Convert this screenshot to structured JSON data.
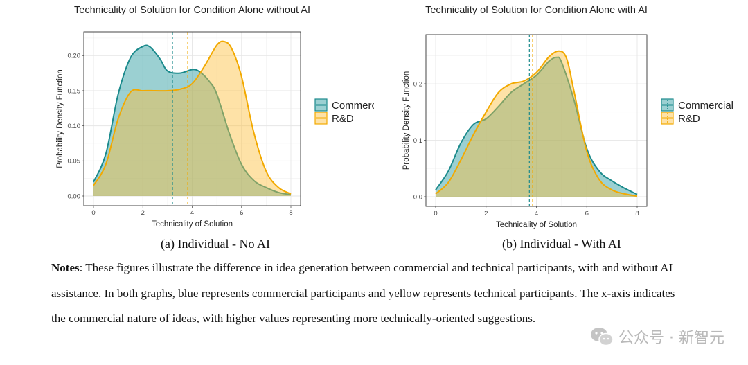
{
  "chart_data": [
    {
      "type": "area",
      "title": "Technicality of Solution for Condition Alone without AI",
      "xlabel": "Technicality of Solution",
      "ylabel": "Probability Density Function",
      "xlim": [
        0,
        8
      ],
      "ylim": [
        0,
        0.22
      ],
      "xticks": [
        0,
        2,
        4,
        6,
        8
      ],
      "yticks": [
        0.0,
        0.05,
        0.1,
        0.15,
        0.2
      ],
      "ytick_labels": [
        "0.00",
        "0.05",
        "0.10",
        "0.15",
        "0.20"
      ],
      "grid": true,
      "legend_placement": "right",
      "series": [
        {
          "name": "Commercial",
          "color": "#1b8a8c",
          "fill": "rgba(56,161,165,0.5)",
          "mean": 3.2,
          "x": [
            0,
            0.5,
            1,
            1.5,
            2,
            2.3,
            2.7,
            3,
            3.5,
            4,
            4.3,
            4.7,
            5,
            5.5,
            6,
            6.5,
            7,
            7.5,
            8
          ],
          "y": [
            0.02,
            0.06,
            0.145,
            0.197,
            0.213,
            0.212,
            0.195,
            0.178,
            0.175,
            0.18,
            0.177,
            0.163,
            0.145,
            0.09,
            0.045,
            0.022,
            0.012,
            0.005,
            0.002
          ]
        },
        {
          "name": "R&D",
          "color": "#f2a900",
          "fill": "rgba(252,190,60,0.45)",
          "mean": 3.82,
          "x": [
            0,
            0.5,
            1,
            1.5,
            2,
            2.5,
            3,
            3.5,
            4,
            4.5,
            5,
            5.3,
            5.6,
            6,
            6.5,
            7,
            7.5,
            8
          ],
          "y": [
            0.015,
            0.045,
            0.11,
            0.148,
            0.15,
            0.15,
            0.15,
            0.152,
            0.16,
            0.185,
            0.215,
            0.22,
            0.21,
            0.17,
            0.09,
            0.035,
            0.012,
            0.003
          ]
        }
      ]
    },
    {
      "type": "area",
      "title": "Technicality of Solution for Condition Alone with AI",
      "xlabel": "Technicality of Solution",
      "ylabel": "Probability Density Function",
      "xlim": [
        0,
        8
      ],
      "ylim": [
        0,
        0.27
      ],
      "xticks": [
        0,
        2,
        4,
        6,
        8
      ],
      "yticks": [
        0.0,
        0.1,
        0.2
      ],
      "ytick_labels": [
        "0.0",
        "0.1",
        "0.2"
      ],
      "grid": true,
      "legend_placement": "right",
      "series": [
        {
          "name": "Commercial",
          "color": "#1b8a8c",
          "fill": "rgba(56,161,165,0.5)",
          "mean": 3.72,
          "x": [
            0,
            0.5,
            1,
            1.5,
            2,
            2.5,
            3,
            3.5,
            4,
            4.5,
            4.8,
            5,
            5.5,
            6,
            6.5,
            7,
            7.5,
            8
          ],
          "y": [
            0.012,
            0.045,
            0.095,
            0.128,
            0.138,
            0.16,
            0.185,
            0.2,
            0.215,
            0.24,
            0.247,
            0.238,
            0.17,
            0.085,
            0.045,
            0.028,
            0.015,
            0.004
          ]
        },
        {
          "name": "R&D",
          "color": "#f2a900",
          "fill": "rgba(252,190,60,0.45)",
          "mean": 3.85,
          "x": [
            0,
            0.5,
            1,
            1.5,
            2,
            2.5,
            3,
            3.5,
            4,
            4.5,
            4.9,
            5.2,
            5.5,
            6,
            6.5,
            7,
            7.5,
            8
          ],
          "y": [
            0.005,
            0.025,
            0.065,
            0.11,
            0.15,
            0.185,
            0.2,
            0.205,
            0.22,
            0.248,
            0.258,
            0.245,
            0.185,
            0.08,
            0.03,
            0.012,
            0.005,
            0.001
          ]
        }
      ]
    }
  ],
  "captions": {
    "a": "(a) Individual - No AI",
    "b": "(b) Individual - With AI"
  },
  "notes": {
    "label": "Notes",
    "text": ": These figures illustrate the difference in idea generation between commercial and technical participants, with and without AI assistance. In both graphs, blue represents commercial participants and yellow represents technical participants. The x-axis indicates the commercial nature of ideas, with higher values representing more technically-oriented suggestions."
  },
  "watermark": {
    "text": "公众号 · 新智元",
    "icon": "wechat-icon"
  }
}
